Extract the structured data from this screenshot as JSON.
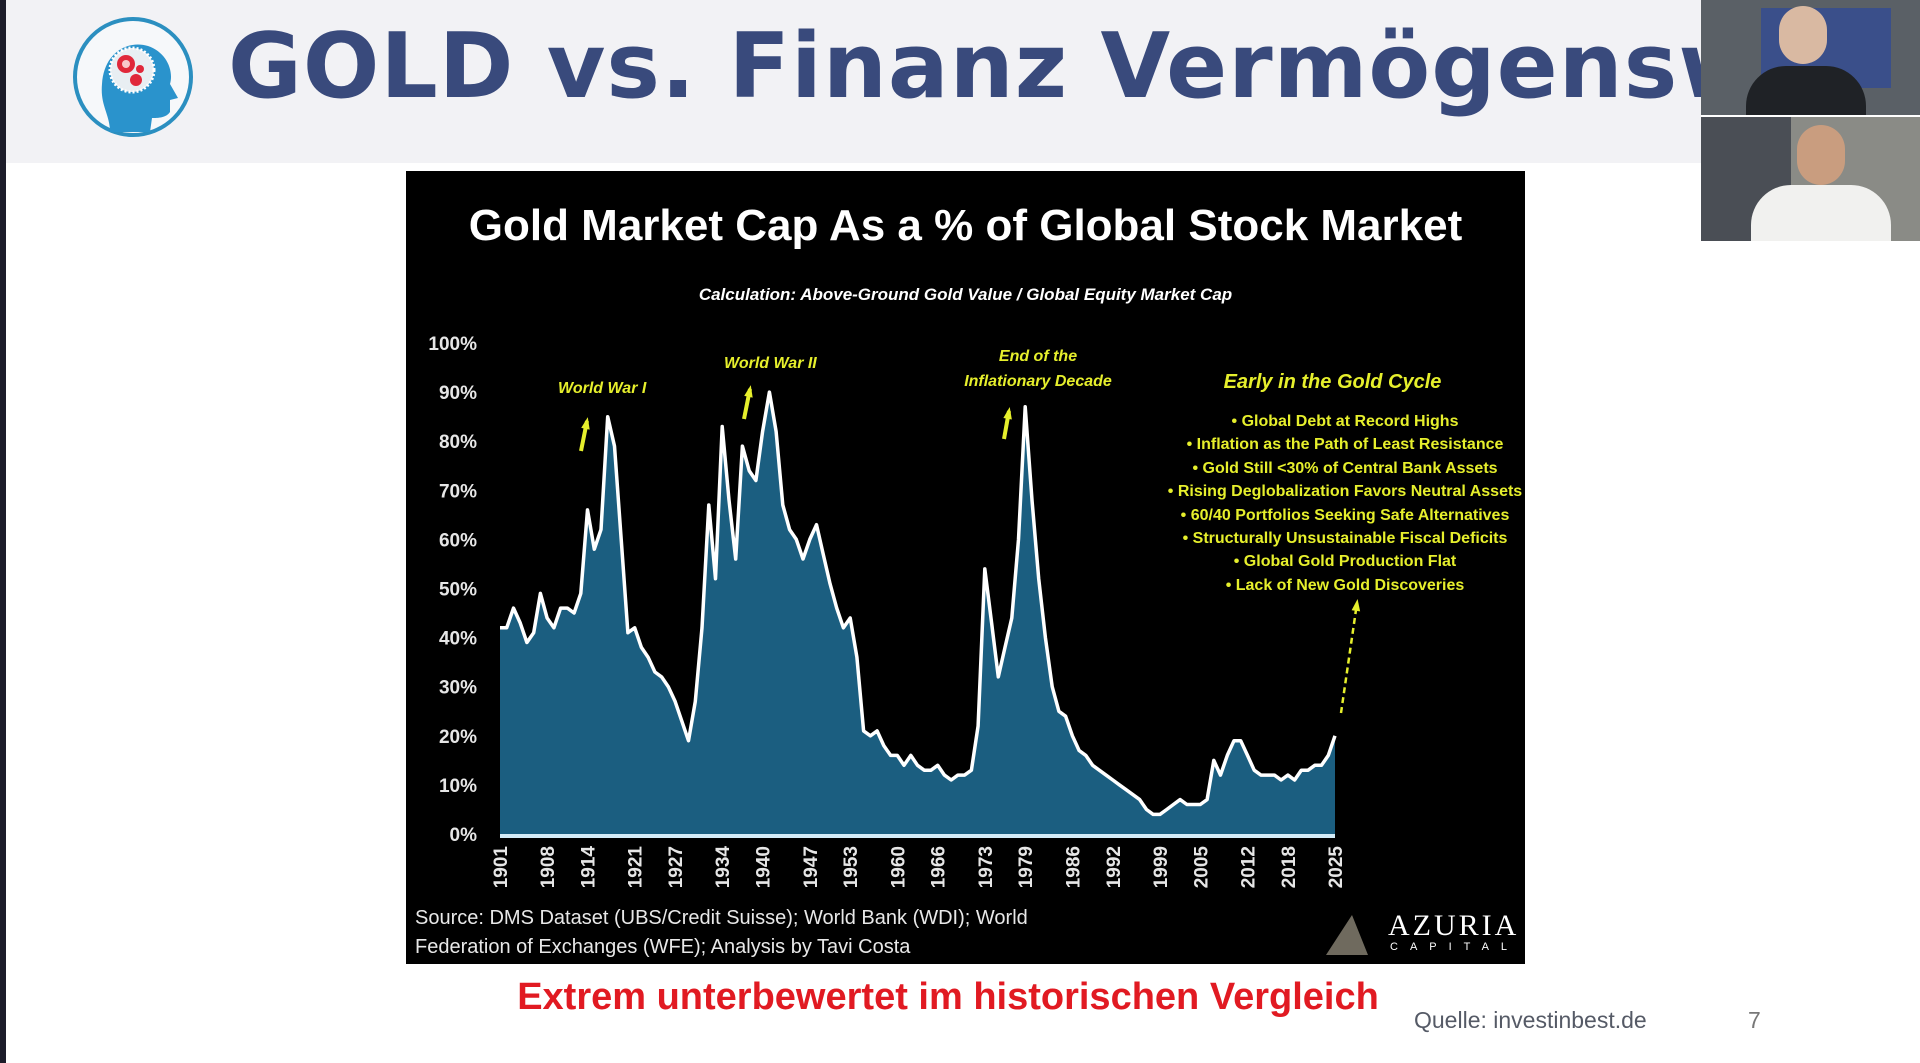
{
  "slide": {
    "title": "GOLD vs. Finanz Vermögenswerte",
    "subtitle_red": "Extrem unterbewertet im historischen Vergleich",
    "source_credit": "Quelle: investinbest.de",
    "page_number": "7",
    "colors": {
      "title": "#394a7c",
      "red": "#e11a22",
      "header_bg": "#f2f2f5"
    }
  },
  "chart_panel": {
    "source_lines": [
      "Source: DMS Dataset (UBS/Credit Suisse); World Bank (WDI); World",
      "Federation of Exchanges (WFE); Analysis by Tavi Costa"
    ],
    "logo": {
      "word": "AZURIA",
      "sub": "CAPITAL"
    },
    "annotations": {
      "ww1": "World War I",
      "ww2": "World War II",
      "inflation_1": "End of the",
      "inflation_2": "Inflationary Decade",
      "cycle_heading": "Early in the Gold Cycle",
      "cycle_bullets": [
        "Global Debt at Record Highs",
        "Inflation as the Path of Least Resistance",
        "Gold Still <30% of Central Bank Assets",
        "Rising Deglobalization Favors Neutral Assets",
        "60/40 Portfolios Seeking Safe Alternatives",
        "Structurally Unsustainable Fiscal Deficits",
        "Global Gold Production Flat",
        "Lack of New Gold Discoveries"
      ]
    }
  },
  "chart_data": {
    "type": "area",
    "title": "Gold Market Cap As a % of Global Stock Market",
    "subtitle": "Calculation: Above-Ground Gold Value / Global Equity Market Cap",
    "xlabel": "",
    "ylabel": "",
    "ylim": [
      0,
      100
    ],
    "xlim": [
      1901,
      2025
    ],
    "y_ticks": [
      "0%",
      "10%",
      "20%",
      "30%",
      "40%",
      "50%",
      "60%",
      "70%",
      "80%",
      "90%",
      "100%"
    ],
    "x_ticks": [
      "1901",
      "1908",
      "1914",
      "1921",
      "1927",
      "1934",
      "1940",
      "1947",
      "1953",
      "1960",
      "1966",
      "1973",
      "1979",
      "1986",
      "1992",
      "1999",
      "2005",
      "2012",
      "2018",
      "2025"
    ],
    "grid": false,
    "colors": {
      "fill": "#1b5e80",
      "line": "#ffffff",
      "annotation": "#e6ef2c",
      "background": "#000000"
    },
    "x": [
      1901,
      1902,
      1903,
      1904,
      1905,
      1906,
      1907,
      1908,
      1909,
      1910,
      1911,
      1912,
      1913,
      1914,
      1915,
      1916,
      1917,
      1918,
      1919,
      1920,
      1921,
      1922,
      1923,
      1924,
      1925,
      1926,
      1927,
      1928,
      1929,
      1930,
      1931,
      1932,
      1933,
      1934,
      1935,
      1936,
      1937,
      1938,
      1939,
      1940,
      1941,
      1942,
      1943,
      1944,
      1945,
      1946,
      1947,
      1948,
      1949,
      1950,
      1951,
      1952,
      1953,
      1954,
      1955,
      1956,
      1957,
      1958,
      1959,
      1960,
      1961,
      1962,
      1963,
      1964,
      1965,
      1966,
      1967,
      1968,
      1969,
      1970,
      1971,
      1972,
      1973,
      1974,
      1975,
      1976,
      1977,
      1978,
      1979,
      1980,
      1981,
      1982,
      1983,
      1984,
      1985,
      1986,
      1987,
      1988,
      1989,
      1990,
      1991,
      1992,
      1993,
      1994,
      1995,
      1996,
      1997,
      1998,
      1999,
      2000,
      2001,
      2002,
      2003,
      2004,
      2005,
      2006,
      2007,
      2008,
      2009,
      2010,
      2011,
      2012,
      2013,
      2014,
      2015,
      2016,
      2017,
      2018,
      2019,
      2020,
      2021,
      2022,
      2023,
      2024,
      2025
    ],
    "values": [
      42,
      42,
      46,
      43,
      39,
      41,
      49,
      44,
      42,
      46,
      46,
      45,
      49,
      66,
      58,
      62,
      85,
      79,
      60,
      41,
      42,
      38,
      36,
      33,
      32,
      30,
      27,
      23,
      19,
      27,
      42,
      67,
      52,
      83,
      68,
      56,
      79,
      74,
      72,
      82,
      90,
      82,
      67,
      62,
      60,
      56,
      60,
      63,
      57,
      51,
      46,
      42,
      44,
      36,
      21,
      20,
      21,
      18,
      16,
      16,
      14,
      16,
      14,
      13,
      13,
      14,
      12,
      11,
      12,
      12,
      13,
      22,
      54,
      43,
      32,
      38,
      44,
      60,
      87,
      68,
      52,
      40,
      30,
      25,
      24,
      20,
      17,
      16,
      14,
      13,
      12,
      11,
      10,
      9,
      8,
      7,
      5,
      4,
      4,
      5,
      6,
      7,
      6,
      6,
      6,
      7,
      15,
      12,
      16,
      19,
      19,
      16,
      13,
      12,
      12,
      12,
      11,
      12,
      11,
      13,
      13,
      14,
      14,
      16,
      20
    ]
  }
}
